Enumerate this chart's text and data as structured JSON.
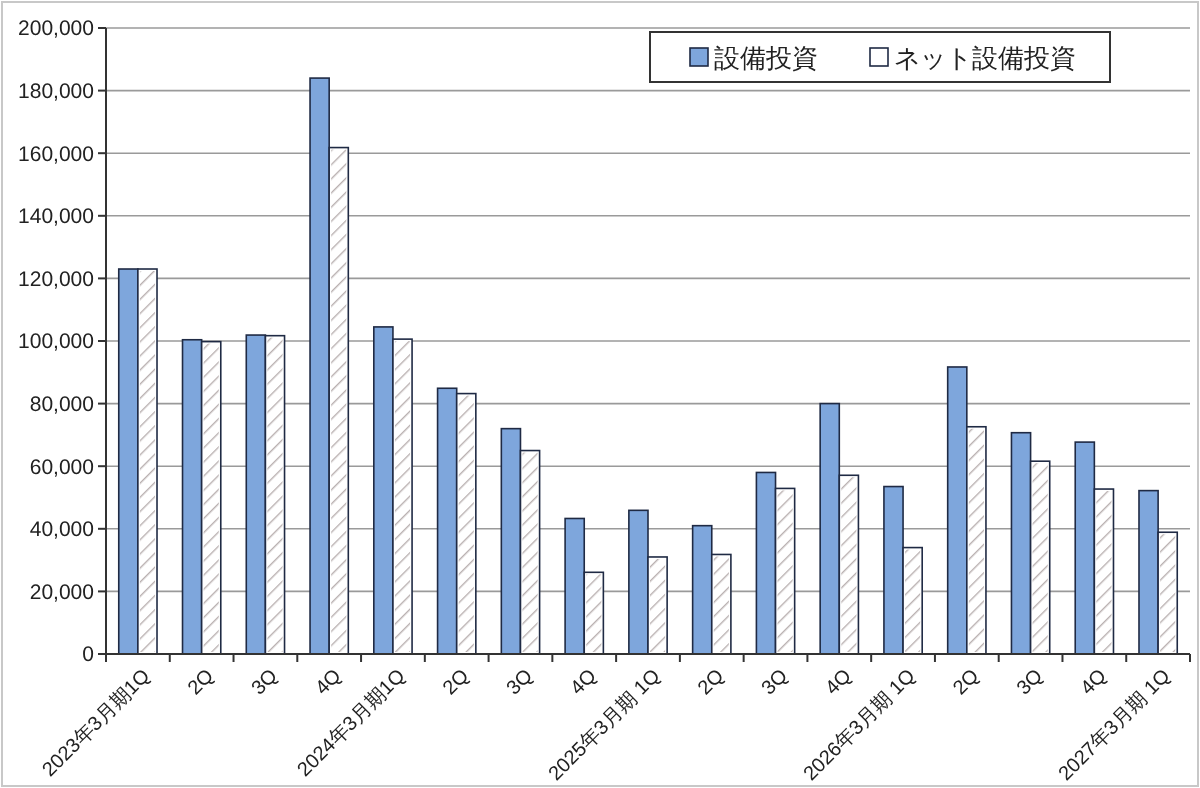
{
  "chart_data": {
    "type": "bar",
    "categories": [
      "2023年3月期1Q",
      "2Q",
      "3Q",
      "4Q",
      "2024年3月期1Q",
      "2Q",
      "3Q",
      "4Q",
      "2025年3月期 1Q",
      "2Q",
      "3Q",
      "4Q",
      "2026年3月期 1Q",
      "2Q",
      "3Q",
      "4Q",
      "2027年3月期 1Q"
    ],
    "series": [
      {
        "name": "設備投資",
        "color": "#7ea6dc",
        "values": [
          123000,
          100400,
          101900,
          184000,
          104500,
          84900,
          72000,
          43300,
          45900,
          41000,
          58000,
          80000,
          53500,
          91700,
          70700,
          67700,
          52200
        ]
      },
      {
        "name": "ネット設備投資",
        "color": "#ffffff",
        "values": [
          123000,
          99800,
          101700,
          161800,
          100600,
          83200,
          65000,
          26100,
          31000,
          31800,
          52900,
          57100,
          34000,
          72600,
          61600,
          52700,
          38900
        ]
      }
    ],
    "ylim": [
      0,
      200000
    ],
    "yticks": [
      {
        "value": 0,
        "label": "0"
      },
      {
        "value": 20000,
        "label": "20,000"
      },
      {
        "value": 40000,
        "label": "40,000"
      },
      {
        "value": 60000,
        "label": "60,000"
      },
      {
        "value": 80000,
        "label": "80,000"
      },
      {
        "value": 100000,
        "label": "100,000"
      },
      {
        "value": 120000,
        "label": "120,000"
      },
      {
        "value": 140000,
        "label": "140,000"
      },
      {
        "value": 160000,
        "label": "160,000"
      },
      {
        "value": 180000,
        "label": "180,000"
      },
      {
        "value": 200000,
        "label": "200,000"
      }
    ],
    "grid": "y",
    "legend": "top right"
  }
}
